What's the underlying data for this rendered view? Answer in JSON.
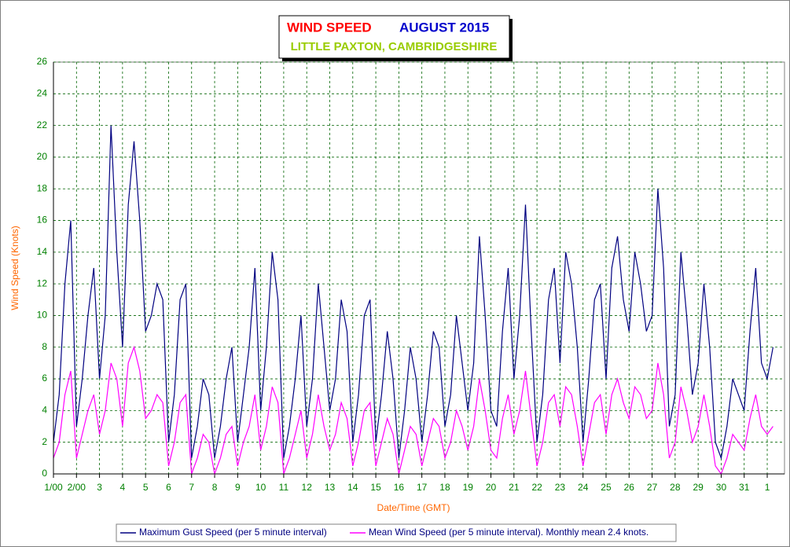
{
  "chart_data": {
    "type": "line",
    "title": "WIND SPEED",
    "title_month": "AUGUST 2015",
    "subtitle": "LITTLE PAXTON, CAMBRIDGESHIRE",
    "x_label": "Date/Time (GMT)",
    "y_label": "Wind Speed (Knots)",
    "xlim": [
      1,
      32.75
    ],
    "ylim": [
      0,
      26
    ],
    "yticks": [
      0,
      2,
      4,
      6,
      8,
      10,
      12,
      14,
      16,
      18,
      20,
      22,
      24,
      26
    ],
    "xticks": [
      {
        "value": 1,
        "label": "1/00"
      },
      {
        "value": 2,
        "label": "2/00"
      },
      {
        "value": 3,
        "label": "3"
      },
      {
        "value": 4,
        "label": "4"
      },
      {
        "value": 5,
        "label": "5"
      },
      {
        "value": 6,
        "label": "6"
      },
      {
        "value": 7,
        "label": "7"
      },
      {
        "value": 8,
        "label": "8"
      },
      {
        "value": 9,
        "label": "9"
      },
      {
        "value": 10,
        "label": "10"
      },
      {
        "value": 11,
        "label": "11"
      },
      {
        "value": 12,
        "label": "12"
      },
      {
        "value": 13,
        "label": "13"
      },
      {
        "value": 14,
        "label": "14"
      },
      {
        "value": 15,
        "label": "15"
      },
      {
        "value": 16,
        "label": "16"
      },
      {
        "value": 17,
        "label": "17"
      },
      {
        "value": 18,
        "label": "18"
      },
      {
        "value": 19,
        "label": "19"
      },
      {
        "value": 20,
        "label": "20"
      },
      {
        "value": 21,
        "label": "21"
      },
      {
        "value": 22,
        "label": "22"
      },
      {
        "value": 23,
        "label": "23"
      },
      {
        "value": 24,
        "label": "24"
      },
      {
        "value": 25,
        "label": "25"
      },
      {
        "value": 26,
        "label": "26"
      },
      {
        "value": 27,
        "label": "27"
      },
      {
        "value": 28,
        "label": "28"
      },
      {
        "value": 29,
        "label": "29"
      },
      {
        "value": 30,
        "label": "30"
      },
      {
        "value": 31,
        "label": "31"
      },
      {
        "value": 32,
        "label": "1"
      }
    ],
    "grid": true,
    "x": [
      1,
      1.25,
      1.5,
      1.75,
      2,
      2.25,
      2.5,
      2.75,
      3,
      3.25,
      3.5,
      3.75,
      4,
      4.25,
      4.5,
      4.75,
      5,
      5.25,
      5.5,
      5.75,
      6,
      6.25,
      6.5,
      6.75,
      7,
      7.25,
      7.5,
      7.75,
      8,
      8.25,
      8.5,
      8.75,
      9,
      9.25,
      9.5,
      9.75,
      10,
      10.25,
      10.5,
      10.75,
      11,
      11.25,
      11.5,
      11.75,
      12,
      12.25,
      12.5,
      12.75,
      13,
      13.25,
      13.5,
      13.75,
      14,
      14.25,
      14.5,
      14.75,
      15,
      15.25,
      15.5,
      15.75,
      16,
      16.25,
      16.5,
      16.75,
      17,
      17.25,
      17.5,
      17.75,
      18,
      18.25,
      18.5,
      18.75,
      19,
      19.25,
      19.5,
      19.75,
      20,
      20.25,
      20.5,
      20.75,
      21,
      21.25,
      21.5,
      21.75,
      22,
      22.25,
      22.5,
      22.75,
      23,
      23.25,
      23.5,
      23.75,
      24,
      24.25,
      24.5,
      24.75,
      25,
      25.25,
      25.5,
      25.75,
      26,
      26.25,
      26.5,
      26.75,
      27,
      27.25,
      27.5,
      27.75,
      28,
      28.25,
      28.5,
      28.75,
      29,
      29.25,
      29.5,
      29.75,
      30,
      30.25,
      30.5,
      30.75,
      31,
      31.25,
      31.5,
      31.75,
      32,
      32.25
    ],
    "series": [
      {
        "name": "Maximum Gust Speed (per 5 minute interval)",
        "color": "#000080",
        "values": [
          2,
          5,
          12,
          16,
          3,
          6,
          10,
          13,
          6,
          10,
          22,
          14,
          8,
          17,
          21,
          16,
          9,
          10,
          12,
          11,
          2,
          5,
          11,
          12,
          1,
          3,
          6,
          5,
          1,
          3,
          6,
          8,
          2,
          5,
          8,
          13,
          4,
          8,
          14,
          11,
          1,
          3,
          6,
          10,
          3,
          6,
          12,
          8,
          4,
          6,
          11,
          9,
          2,
          5,
          10,
          11,
          2,
          5,
          9,
          6,
          1,
          4,
          8,
          6,
          2,
          5,
          9,
          8,
          3,
          5,
          10,
          7,
          4,
          7,
          15,
          10,
          4,
          3,
          9,
          13,
          6,
          10,
          17,
          9,
          2,
          5,
          11,
          13,
          7,
          14,
          12,
          8,
          2,
          6,
          11,
          12,
          6,
          13,
          15,
          11,
          9,
          14,
          12,
          9,
          10,
          18,
          13,
          3,
          5,
          14,
          10,
          5,
          7,
          12,
          8,
          2,
          1,
          3,
          6,
          5,
          4,
          9,
          13,
          7,
          6,
          8
        ]
      },
      {
        "name": "Mean Wind Speed (per 5 minute interval). Monthly mean 2.4 knots.",
        "color": "#ff00ff",
        "values": [
          1,
          2,
          5,
          6.5,
          1,
          2.5,
          4,
          5,
          2.5,
          4,
          7,
          6,
          3,
          7,
          8,
          6.5,
          3.5,
          4,
          5,
          4.5,
          0.5,
          2,
          4.5,
          5,
          0,
          1,
          2.5,
          2,
          0,
          1,
          2.5,
          3,
          0.5,
          2,
          3,
          5,
          1.5,
          3,
          5.5,
          4.5,
          0,
          1,
          2.5,
          4,
          1,
          2.5,
          5,
          3,
          1.5,
          2.5,
          4.5,
          3.5,
          0.5,
          2,
          4,
          4.5,
          0.5,
          2,
          3.5,
          2.5,
          0,
          1.5,
          3,
          2.5,
          0.5,
          2,
          3.5,
          3,
          1,
          2,
          4,
          3,
          1.5,
          3,
          6,
          4,
          1.5,
          1,
          3.5,
          5,
          2.5,
          4,
          6.5,
          3.5,
          0.5,
          2,
          4.5,
          5,
          3,
          5.5,
          5,
          3,
          0.5,
          2.5,
          4.5,
          5,
          2.5,
          5,
          6,
          4.5,
          3.5,
          5.5,
          5,
          3.5,
          4,
          7,
          5,
          1,
          2,
          5.5,
          4,
          2,
          3,
          5,
          3,
          0.5,
          0,
          1,
          2.5,
          2,
          1.5,
          3.5,
          5,
          3,
          2.5,
          3
        ]
      }
    ]
  }
}
